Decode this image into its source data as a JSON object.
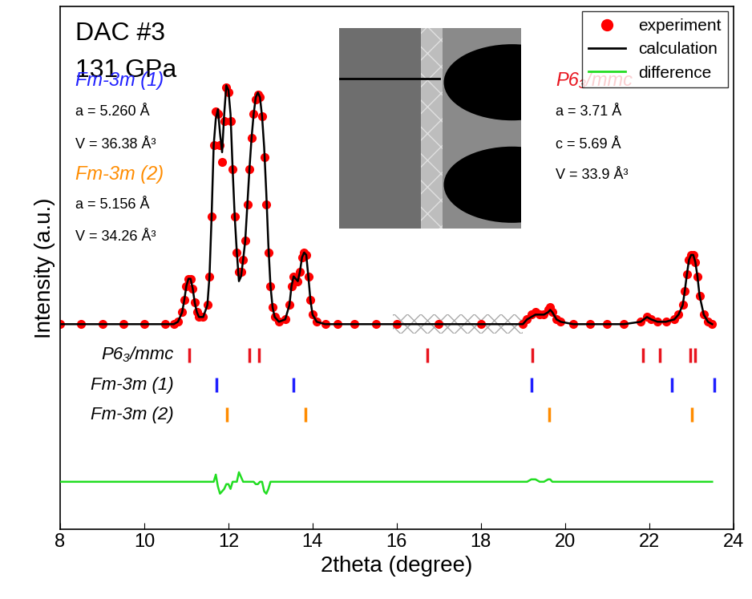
{
  "chart_data": {
    "type": "line",
    "sample": "DAC #3",
    "pressure": "131 GPa",
    "xlabel": "2theta (degree)",
    "ylabel": "Intensity (a.u.)",
    "xlim": [
      8,
      24
    ],
    "xticks": [
      8,
      10,
      12,
      14,
      16,
      18,
      20,
      22,
      24
    ],
    "ylim": [
      -0.86,
      1.33
    ],
    "yticks": [],
    "tick_labels": "x",
    "legend": "upper right",
    "excluded_region": [
      15.9,
      19.0
    ],
    "phases": [
      {
        "name": "Fm-3m (1)",
        "color": "#1f1fff",
        "lines": [
          "a = 5.260 Å",
          "V = 36.38 Å³"
        ]
      },
      {
        "name": "Fm-3m (2)",
        "color": "#ff8c00",
        "lines": [
          "a = 5.156 Å",
          "V = 34.26 Å³"
        ]
      },
      {
        "name": "P6₃/mmc",
        "color": "#e8141e",
        "lines": [
          "a = 3.71 Å",
          "c = 5.69 Å",
          "V = 33.9 Å³"
        ]
      }
    ],
    "reflections": [
      {
        "name": "P6₃/mmc",
        "color": "#e8141e",
        "level": -0.13,
        "positions": [
          11.07,
          12.5,
          12.72,
          16.72,
          19.22,
          21.85,
          22.25,
          22.97,
          23.1
        ]
      },
      {
        "name": "Fm-3m (1)",
        "color": "#1f1fff",
        "level": -0.255,
        "positions": [
          11.72,
          13.55,
          19.2,
          22.55,
          23.55
        ]
      },
      {
        "name": "Fm-3m (2)",
        "color": "#ff8c00",
        "level": -0.38,
        "positions": [
          11.97,
          13.83,
          19.63,
          23.02
        ]
      }
    ],
    "x": [
      8.0,
      8.5,
      9.0,
      9.5,
      10.0,
      10.5,
      10.7,
      10.8,
      10.9,
      10.95,
      11.0,
      11.05,
      11.1,
      11.15,
      11.2,
      11.25,
      11.3,
      11.4,
      11.5,
      11.55,
      11.6,
      11.65,
      11.7,
      11.75,
      11.8,
      11.85,
      11.9,
      11.95,
      12.0,
      12.05,
      12.1,
      12.15,
      12.2,
      12.25,
      12.3,
      12.35,
      12.4,
      12.45,
      12.5,
      12.55,
      12.6,
      12.65,
      12.7,
      12.75,
      12.8,
      12.85,
      12.9,
      12.95,
      13.0,
      13.05,
      13.1,
      13.2,
      13.35,
      13.45,
      13.5,
      13.55,
      13.6,
      13.65,
      13.7,
      13.75,
      13.8,
      13.85,
      13.9,
      13.95,
      14.0,
      14.1,
      14.3,
      14.6,
      15.0,
      15.5,
      16.0,
      17.0,
      18.0,
      19.0,
      19.1,
      19.2,
      19.3,
      19.4,
      19.5,
      19.6,
      19.65,
      19.7,
      19.8,
      19.9,
      20.2,
      20.6,
      21.0,
      21.4,
      21.8,
      21.95,
      22.05,
      22.2,
      22.4,
      22.6,
      22.7,
      22.8,
      22.85,
      22.9,
      22.95,
      23.0,
      23.05,
      23.1,
      23.15,
      23.2,
      23.3,
      23.4,
      23.5
    ],
    "series": [
      {
        "name": "experiment",
        "color": "#ff0000",
        "marker": "circle",
        "line_style": "none",
        "values": [
          0,
          0,
          0,
          0,
          0,
          0,
          0,
          0.01,
          0.05,
          0.1,
          0.16,
          0.19,
          0.19,
          0.15,
          0.09,
          0.05,
          0.03,
          0.03,
          0.08,
          0.2,
          0.45,
          0.75,
          0.89,
          0.88,
          0.75,
          0.68,
          0.85,
          0.99,
          0.97,
          0.85,
          0.65,
          0.45,
          0.3,
          0.22,
          0.22,
          0.27,
          0.35,
          0.5,
          0.65,
          0.78,
          0.88,
          0.94,
          0.96,
          0.95,
          0.87,
          0.7,
          0.5,
          0.3,
          0.16,
          0.07,
          0.03,
          0.01,
          0.02,
          0.08,
          0.16,
          0.2,
          0.19,
          0.18,
          0.22,
          0.28,
          0.3,
          0.29,
          0.2,
          0.1,
          0.04,
          0.01,
          0,
          0,
          0,
          0,
          0,
          0,
          0,
          0,
          0.02,
          0.04,
          0.05,
          0.04,
          0.04,
          0.06,
          0.07,
          0.05,
          0.02,
          0.01,
          0,
          0,
          0,
          0,
          0.01,
          0.03,
          0.02,
          0.01,
          0.01,
          0.02,
          0.04,
          0.08,
          0.14,
          0.21,
          0.27,
          0.29,
          0.29,
          0.26,
          0.2,
          0.12,
          0.04,
          0.01,
          0
        ]
      },
      {
        "name": "calculation",
        "color": "#000000",
        "marker": "none",
        "line_style": "solid",
        "values": [
          0,
          0,
          0,
          0,
          0,
          0,
          0,
          0.01,
          0.05,
          0.1,
          0.16,
          0.19,
          0.19,
          0.15,
          0.09,
          0.05,
          0.03,
          0.03,
          0.08,
          0.2,
          0.45,
          0.75,
          0.86,
          0.9,
          0.8,
          0.72,
          0.88,
          1.0,
          0.98,
          0.88,
          0.65,
          0.45,
          0.3,
          0.18,
          0.2,
          0.27,
          0.35,
          0.5,
          0.65,
          0.78,
          0.88,
          0.95,
          0.97,
          0.95,
          0.87,
          0.74,
          0.55,
          0.33,
          0.16,
          0.07,
          0.03,
          0.01,
          0.02,
          0.08,
          0.16,
          0.2,
          0.19,
          0.18,
          0.22,
          0.28,
          0.3,
          0.29,
          0.2,
          0.1,
          0.04,
          0.01,
          0,
          0,
          0,
          0,
          0,
          0,
          0,
          0,
          0.02,
          0.03,
          0.04,
          0.04,
          0.04,
          0.05,
          0.06,
          0.05,
          0.02,
          0.01,
          0,
          0,
          0,
          0,
          0.01,
          0.03,
          0.02,
          0.01,
          0.01,
          0.02,
          0.04,
          0.08,
          0.14,
          0.21,
          0.27,
          0.29,
          0.29,
          0.26,
          0.2,
          0.12,
          0.04,
          0.01,
          0
        ]
      },
      {
        "name": "difference",
        "color": "#22dd22",
        "marker": "none",
        "line_style": "solid",
        "values": [
          -0.66,
          -0.66,
          -0.66,
          -0.66,
          -0.66,
          -0.66,
          -0.66,
          -0.66,
          -0.66,
          -0.66,
          -0.66,
          -0.66,
          -0.66,
          -0.66,
          -0.66,
          -0.66,
          -0.66,
          -0.66,
          -0.66,
          -0.66,
          -0.66,
          -0.66,
          -0.63,
          -0.68,
          -0.71,
          -0.7,
          -0.69,
          -0.67,
          -0.67,
          -0.69,
          -0.66,
          -0.66,
          -0.66,
          -0.62,
          -0.64,
          -0.66,
          -0.66,
          -0.66,
          -0.66,
          -0.66,
          -0.66,
          -0.67,
          -0.67,
          -0.66,
          -0.66,
          -0.7,
          -0.71,
          -0.69,
          -0.66,
          -0.66,
          -0.66,
          -0.66,
          -0.66,
          -0.66,
          -0.66,
          -0.66,
          -0.66,
          -0.66,
          -0.66,
          -0.66,
          -0.66,
          -0.66,
          -0.66,
          -0.66,
          -0.66,
          -0.66,
          -0.66,
          -0.66,
          -0.66,
          -0.66,
          -0.66,
          -0.66,
          -0.66,
          -0.66,
          -0.66,
          -0.65,
          -0.65,
          -0.66,
          -0.66,
          -0.65,
          -0.65,
          -0.66,
          -0.66,
          -0.66,
          -0.66,
          -0.66,
          -0.66,
          -0.66,
          -0.66,
          -0.66,
          -0.66,
          -0.66,
          -0.66,
          -0.66,
          -0.66,
          -0.66,
          -0.66,
          -0.66,
          -0.66,
          -0.66,
          -0.66,
          -0.66,
          -0.66,
          -0.66,
          -0.66,
          -0.66,
          -0.66
        ]
      }
    ]
  }
}
